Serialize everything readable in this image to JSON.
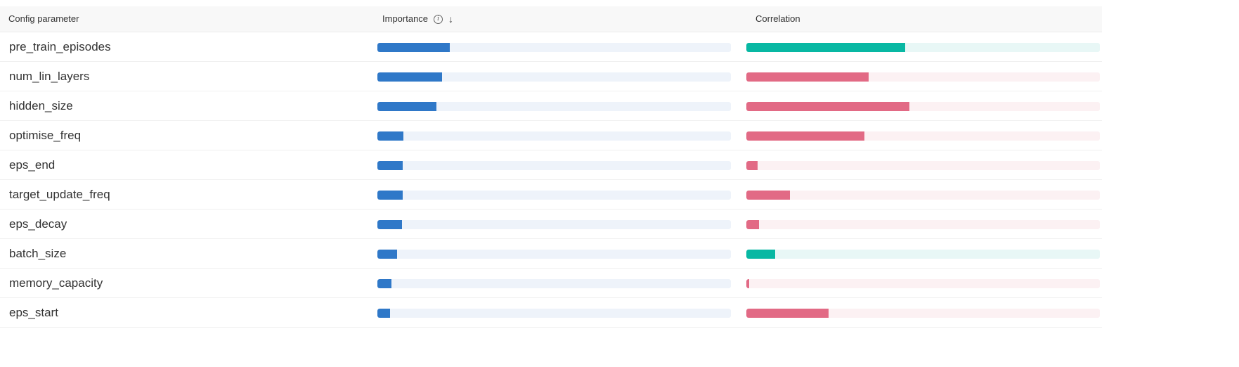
{
  "header": {
    "param_label": "Config parameter",
    "importance_label": "Importance",
    "correlation_label": "Correlation",
    "sort_icon": "arrow-down-icon",
    "info_icon": "info-icon"
  },
  "colors": {
    "importance": "#2f78c8",
    "positive": "#08b8a3",
    "negative": "#e26a85"
  },
  "rows": [
    {
      "name": "pre_train_episodes",
      "importance": 0.205,
      "correlation": 0.45
    },
    {
      "name": "num_lin_layers",
      "importance": 0.183,
      "correlation": -0.345
    },
    {
      "name": "hidden_size",
      "importance": 0.167,
      "correlation": -0.462
    },
    {
      "name": "optimise_freq",
      "importance": 0.073,
      "correlation": -0.334
    },
    {
      "name": "eps_end",
      "importance": 0.071,
      "correlation": -0.032
    },
    {
      "name": "target_update_freq",
      "importance": 0.071,
      "correlation": -0.123
    },
    {
      "name": "eps_decay",
      "importance": 0.069,
      "correlation": -0.035
    },
    {
      "name": "batch_size",
      "importance": 0.055,
      "correlation": 0.082
    },
    {
      "name": "memory_capacity",
      "importance": 0.039,
      "correlation": -0.007
    },
    {
      "name": "eps_start",
      "importance": 0.035,
      "correlation": -0.232
    }
  ]
}
